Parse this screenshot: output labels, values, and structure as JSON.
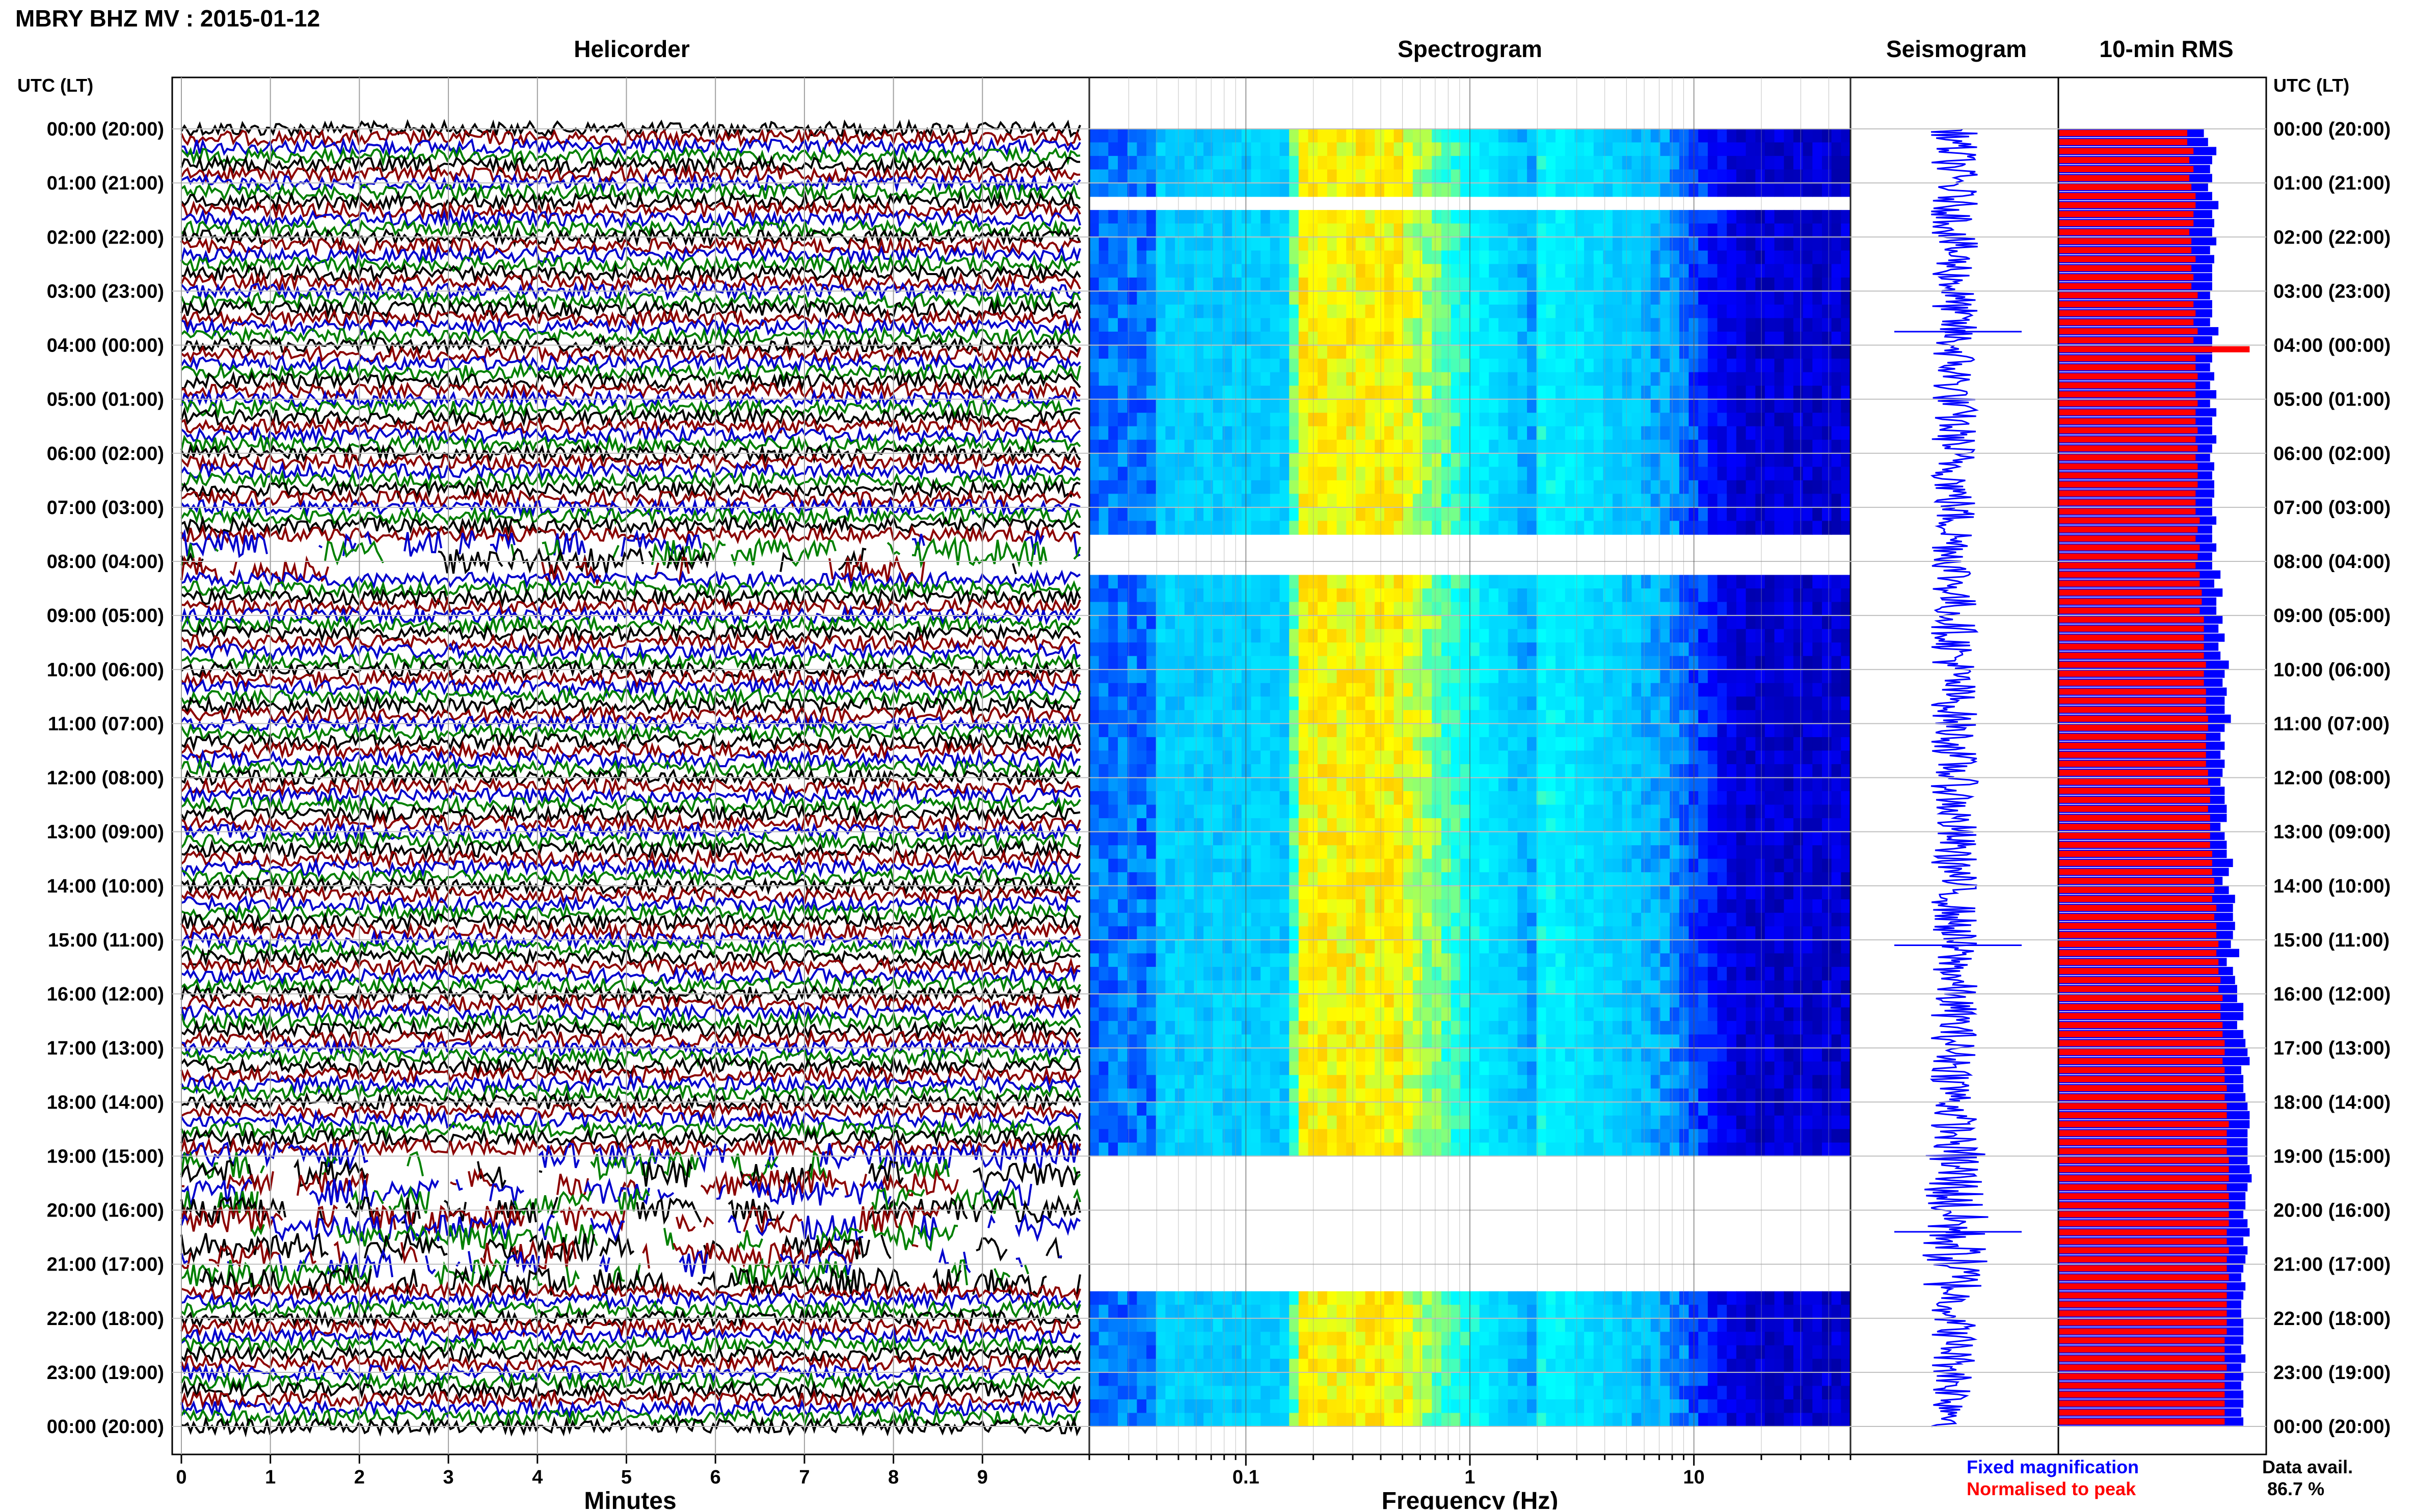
{
  "header": {
    "title": "MBRY BHZ MV : 2015-01-12"
  },
  "panels": {
    "helicorder": "Helicorder",
    "spectrogram": "Spectrogram",
    "seismogram": "Seismogram",
    "rms": "10-min RMS"
  },
  "time_axis": {
    "title_left": "UTC (LT)",
    "title_right": "UTC (LT)",
    "labels": [
      "00:00 (20:00)",
      "01:00 (21:00)",
      "02:00 (22:00)",
      "03:00 (23:00)",
      "04:00 (00:00)",
      "05:00 (01:00)",
      "06:00 (02:00)",
      "07:00 (03:00)",
      "08:00 (04:00)",
      "09:00 (05:00)",
      "10:00 (06:00)",
      "11:00 (07:00)",
      "12:00 (08:00)",
      "13:00 (09:00)",
      "14:00 (10:00)",
      "15:00 (11:00)",
      "16:00 (12:00)",
      "17:00 (13:00)",
      "18:00 (14:00)",
      "19:00 (15:00)",
      "20:00 (16:00)",
      "21:00 (17:00)",
      "22:00 (18:00)",
      "23:00 (19:00)",
      "00:00 (20:00)"
    ]
  },
  "legend": {
    "fixed": "Fixed magnification",
    "normalised": "Normalised to peak",
    "fixed_color": "#0000ff",
    "normalised_color": "#ff0000"
  },
  "data_availability": {
    "label": "Data avail.",
    "value": "86.7 %"
  },
  "chart_data": [
    {
      "type": "line",
      "panel": "helicorder",
      "xlabel": "Minutes",
      "xlim": [
        0,
        10
      ],
      "x_ticks": [
        "0",
        "1",
        "2",
        "3",
        "4",
        "5",
        "6",
        "7",
        "8",
        "9"
      ],
      "trace_colors": [
        "#000000",
        "#8b0000",
        "#0000cd",
        "#008000"
      ],
      "gaps_hours": [
        [
          7.55,
          8.3
        ],
        [
          18.95,
          21.4
        ]
      ]
    },
    {
      "type": "heatmap",
      "panel": "spectrogram",
      "xlabel": "Frequency (Hz)",
      "x_scale": "log",
      "xlim": [
        0.02,
        50
      ],
      "x_ticks": [
        "0.1",
        "1",
        "10"
      ],
      "colormap": [
        "#00008b",
        "#0000ff",
        "#00bfff",
        "#00ffff",
        "#ffff00",
        "#ff8c00"
      ],
      "peak_band_hz": [
        0.17,
        0.5
      ],
      "gaps_hours": [
        [
          1.35,
          1.6
        ],
        [
          7.45,
          8.25
        ],
        [
          18.95,
          21.5
        ]
      ]
    },
    {
      "type": "line",
      "panel": "seismogram",
      "color": "#0000ff",
      "spikes_hours": [
        3.75,
        15.1,
        20.4
      ]
    },
    {
      "type": "bar",
      "panel": "10-min RMS",
      "orientation": "horizontal",
      "series": [
        {
          "name": "Fixed magnification",
          "color": "#0000ff",
          "values": [
            0.7,
            0.72,
            0.76,
            0.74,
            0.73,
            0.74,
            0.72,
            0.74,
            0.77,
            0.74,
            0.75,
            0.74,
            0.76,
            0.73,
            0.75,
            0.74,
            0.74,
            0.74,
            0.73,
            0.74,
            0.74,
            0.73,
            0.77,
            0.74,
            0.74,
            0.74,
            0.73,
            0.75,
            0.73,
            0.76,
            0.73,
            0.76,
            0.74,
            0.74,
            0.76,
            0.74,
            0.73,
            0.75,
            0.74,
            0.75,
            0.75,
            0.74,
            0.74,
            0.76,
            0.74,
            0.74,
            0.76,
            0.74,
            0.74,
            0.78,
            0.75,
            0.79,
            0.76,
            0.76,
            0.79,
            0.77,
            0.8,
            0.77,
            0.78,
            0.82,
            0.8,
            0.79,
            0.81,
            0.8,
            0.8,
            0.83,
            0.8,
            0.78,
            0.8,
            0.78,
            0.8,
            0.79,
            0.78,
            0.8,
            0.8,
            0.81,
            0.81,
            0.78,
            0.8,
            0.81,
            0.81,
            0.84,
            0.82,
            0.79,
            0.82,
            0.85,
            0.84,
            0.84,
            0.85,
            0.84,
            0.83,
            0.87,
            0.81,
            0.84,
            0.85,
            0.86,
            0.86,
            0.89,
            0.89,
            0.86,
            0.89,
            0.9,
            0.91,
            0.92,
            0.88,
            0.89,
            0.89,
            0.9,
            0.91,
            0.92,
            0.92,
            0.91,
            0.91,
            0.91,
            0.91,
            0.92,
            0.93,
            0.91,
            0.9,
            0.9,
            0.89,
            0.91,
            0.92,
            0.89,
            0.91,
            0.9,
            0.89,
            0.88,
            0.9,
            0.89,
            0.88,
            0.88,
            0.89,
            0.89,
            0.89,
            0.88,
            0.9,
            0.88,
            0.89,
            0.88,
            0.89,
            0.89,
            0.88,
            0.89
          ]
        },
        {
          "name": "Normalised to peak",
          "color": "#ff0000",
          "values": [
            0.62,
            0.62,
            0.65,
            0.63,
            0.65,
            0.63,
            0.64,
            0.66,
            0.66,
            0.65,
            0.65,
            0.63,
            0.64,
            0.64,
            0.66,
            0.64,
            0.65,
            0.64,
            0.67,
            0.65,
            0.66,
            0.65,
            0.67,
            0.65,
            0.92,
            0.66,
            0.66,
            0.67,
            0.66,
            0.66,
            0.67,
            0.66,
            0.66,
            0.67,
            0.66,
            0.67,
            0.66,
            0.67,
            0.67,
            0.67,
            0.66,
            0.66,
            0.66,
            0.68,
            0.67,
            0.66,
            0.68,
            0.67,
            0.66,
            0.68,
            0.68,
            0.69,
            0.69,
            0.68,
            0.7,
            0.7,
            0.7,
            0.7,
            0.7,
            0.71,
            0.7,
            0.7,
            0.71,
            0.71,
            0.71,
            0.72,
            0.72,
            0.71,
            0.71,
            0.71,
            0.71,
            0.72,
            0.72,
            0.73,
            0.73,
            0.72,
            0.73,
            0.73,
            0.73,
            0.73,
            0.74,
            0.74,
            0.74,
            0.75,
            0.75,
            0.74,
            0.76,
            0.75,
            0.76,
            0.76,
            0.77,
            0.76,
            0.77,
            0.77,
            0.78,
            0.77,
            0.79,
            0.78,
            0.78,
            0.79,
            0.79,
            0.8,
            0.8,
            0.79,
            0.8,
            0.8,
            0.81,
            0.8,
            0.81,
            0.81,
            0.82,
            0.81,
            0.81,
            0.81,
            0.82,
            0.82,
            0.82,
            0.81,
            0.82,
            0.82,
            0.82,
            0.82,
            0.81,
            0.81,
            0.82,
            0.81,
            0.81,
            0.82,
            0.81,
            0.81,
            0.81,
            0.81,
            0.81,
            0.81,
            0.8,
            0.8,
            0.8,
            0.81,
            0.8,
            0.8,
            0.8,
            0.8,
            0.8,
            0.8
          ]
        }
      ]
    }
  ]
}
